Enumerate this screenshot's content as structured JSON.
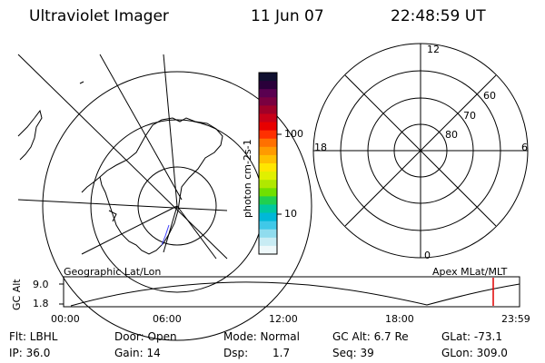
{
  "header": {
    "instrument": "Ultraviolet Imager",
    "date": "11 Jun 07",
    "time": "22:48:59 UT"
  },
  "colorbar": {
    "label": "photon cm-2s-1",
    "ticks": [
      "100",
      "10"
    ],
    "colors": [
      "#101030",
      "#2a003a",
      "#5a0050",
      "#7a0040",
      "#a00028",
      "#c80018",
      "#e80000",
      "#ff3000",
      "#ff7000",
      "#ff9a00",
      "#ffc000",
      "#ffe600",
      "#e0f000",
      "#b0e800",
      "#70e000",
      "#20d050",
      "#00c8a0",
      "#00b8d8",
      "#40c8e8",
      "#90dcee",
      "#c8ecf4",
      "#eef8fa"
    ]
  },
  "polar_plot": {
    "mlt_labels": {
      "top": "12",
      "left": "18",
      "right": "6",
      "bottom": "0"
    },
    "lat_labels": [
      "60",
      "70",
      "80"
    ]
  },
  "orbit_panel": {
    "left_label": "Geographic Lat/Lon",
    "right_label": "Apex MLat/MLT",
    "y_axis_label": "GC Alt",
    "y_ticks": [
      "9.0",
      "1.8"
    ],
    "x_ticks": [
      "00:00",
      "06:00",
      "12:00",
      "18:00",
      "23:59"
    ],
    "current_marker_color": "#e00000",
    "curve_color": "#000000"
  },
  "status": {
    "row1": {
      "filter": "Flt: LBHL",
      "door": "Door: Open",
      "mode": "Mode: Normal",
      "gc_alt": "GC Alt: 6.7 Re",
      "glat": "GLat: -73.1"
    },
    "row2": {
      "ip": "IP: 36.0",
      "gain": "Gain: 14",
      "dsp_label": "Dsp:",
      "dsp_value": "1.7",
      "seq": "Seq: 39",
      "glon": "GLon: 309.0"
    }
  }
}
